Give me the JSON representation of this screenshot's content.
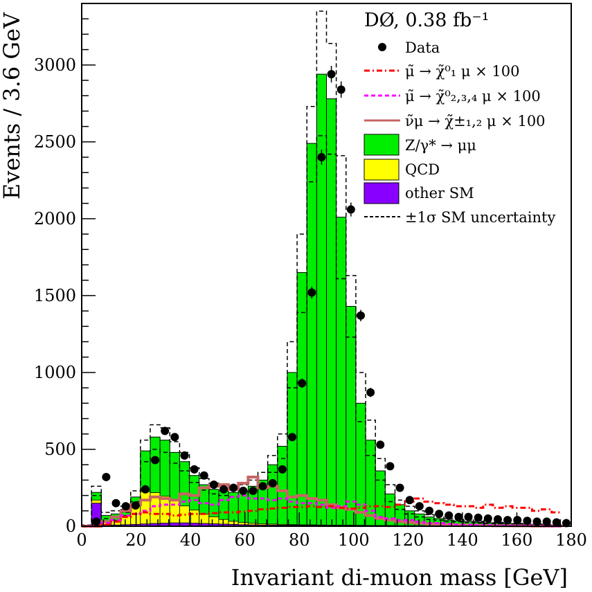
{
  "chart_data": {
    "type": "histogram",
    "title": "DØ, 0.38 fb⁻¹",
    "xlabel": "Invariant di-muon mass [GeV]",
    "ylabel": "Events / 3.6 GeV",
    "xlim": [
      0,
      180
    ],
    "ylim": [
      0,
      3400
    ],
    "bin_width": 3.6,
    "x_ticks": [
      0,
      20,
      40,
      60,
      80,
      100,
      120,
      140,
      160,
      180
    ],
    "x_tick_labels": [
      "0",
      "20",
      "40",
      "60",
      "80",
      "100",
      "120",
      "140",
      "160",
      "180"
    ],
    "y_ticks": [
      0,
      500,
      1000,
      1500,
      2000,
      2500,
      3000
    ],
    "y_tick_labels": [
      "0",
      "500",
      "1000",
      "1500",
      "2000",
      "2500",
      "3000"
    ],
    "legend_position": "top-right",
    "legend": [
      {
        "label": "Data",
        "style": "marker",
        "color": "#000000"
      },
      {
        "label": "μ̃ → χ̃⁰₁ μ × 100",
        "style": "dashdot",
        "color": "#ff0000"
      },
      {
        "label": "μ̃ → χ̃⁰₂,₃,₄ μ × 100",
        "style": "dashed",
        "color": "#ff00ff"
      },
      {
        "label": "ν̃μ → χ̃±₁,₂ μ × 100",
        "style": "solid",
        "color": "#c86464"
      },
      {
        "label": "Z/γ* → μμ",
        "style": "fill",
        "color": "#00ee00"
      },
      {
        "label": "QCD",
        "style": "fill",
        "color": "#ffff00"
      },
      {
        "label": "other SM",
        "style": "fill",
        "color": "#8800ff"
      },
      {
        "label": "±1σ SM uncertainty",
        "style": "dashed",
        "color": "#000000"
      }
    ],
    "series": [
      {
        "name": "Data",
        "color": "#000000",
        "x": [
          5.4,
          9,
          12.6,
          16.2,
          19.8,
          23.4,
          27,
          30.6,
          34.2,
          37.8,
          41.4,
          45,
          48.6,
          52.2,
          55.8,
          59.4,
          63,
          66.6,
          70.2,
          73.8,
          77.4,
          81,
          84.6,
          88.2,
          91.8,
          95.4,
          99,
          102.6,
          106.2,
          109.8,
          113.4,
          117,
          120.6,
          124.2,
          127.8,
          131.4,
          135,
          138.6,
          142.2,
          145.8,
          149.4,
          153,
          156.6,
          160.2,
          163.8,
          167.4,
          171,
          174.6,
          178.2
        ],
        "values": [
          30,
          320,
          150,
          130,
          135,
          240,
          430,
          620,
          580,
          460,
          370,
          330,
          270,
          240,
          250,
          230,
          230,
          260,
          280,
          370,
          580,
          930,
          1520,
          2400,
          2940,
          2840,
          2060,
          1370,
          870,
          530,
          390,
          250,
          170,
          130,
          100,
          80,
          70,
          60,
          60,
          55,
          50,
          45,
          40,
          40,
          35,
          30,
          30,
          25,
          20
        ]
      },
      {
        "name": "Z/γ* → μμ",
        "color": "#00ee00",
        "values": [
          5,
          220,
          70,
          80,
          110,
          190,
          490,
          580,
          560,
          480,
          420,
          330,
          270,
          240,
          230,
          220,
          230,
          260,
          300,
          400,
          520,
          1000,
          1650,
          2490,
          2940,
          2780,
          2010,
          1430,
          800,
          560,
          360,
          210,
          140,
          100,
          80,
          60,
          50,
          40,
          35,
          30,
          25,
          22,
          20,
          18,
          15,
          13,
          12,
          10,
          8
        ]
      },
      {
        "name": "QCD",
        "color": "#ffff00",
        "values": [
          3,
          20,
          15,
          30,
          60,
          120,
          210,
          200,
          175,
          145,
          110,
          85,
          60,
          45,
          30,
          20,
          14,
          10,
          8,
          6,
          5,
          4,
          3,
          3,
          2,
          2,
          2,
          2,
          1,
          1,
          1,
          1,
          1,
          1,
          1,
          0,
          0,
          0,
          0,
          0,
          0,
          0,
          0,
          0,
          0,
          0,
          0,
          0,
          0
        ]
      },
      {
        "name": "other SM",
        "color": "#8800ff",
        "values": [
          3,
          150,
          10,
          8,
          10,
          12,
          15,
          18,
          20,
          22,
          22,
          20,
          18,
          16,
          14,
          12,
          10,
          9,
          8,
          8,
          7,
          7,
          6,
          6,
          6,
          5,
          5,
          5,
          5,
          4,
          4,
          4,
          3,
          3,
          3,
          3,
          3,
          2,
          2,
          2,
          2,
          2,
          2,
          2,
          1,
          1,
          1,
          1,
          1
        ]
      },
      {
        "name": "±1σ SM uncertainty",
        "color": "#000000",
        "upper": [
          8,
          260,
          90,
          100,
          130,
          230,
          560,
          660,
          640,
          550,
          480,
          380,
          310,
          280,
          270,
          260,
          270,
          300,
          350,
          460,
          600,
          1200,
          1900,
          2730,
          3350,
          3140,
          2410,
          1630,
          1000,
          690,
          440,
          270,
          170,
          130,
          100,
          75,
          60,
          50,
          45,
          38,
          32,
          28,
          25,
          22,
          18,
          16,
          14,
          12,
          10
        ],
        "lower": [
          3,
          200,
          50,
          60,
          90,
          160,
          420,
          500,
          480,
          410,
          360,
          285,
          235,
          210,
          200,
          190,
          200,
          225,
          260,
          350,
          440,
          900,
          1390,
          2240,
          2540,
          2420,
          1610,
          1230,
          680,
          460,
          300,
          160,
          110,
          80,
          60,
          45,
          40,
          30,
          28,
          24,
          20,
          18,
          16,
          14,
          12,
          10,
          10,
          8,
          6
        ]
      },
      {
        "name": "μ̃ → χ̃⁰₁ μ × 100",
        "color": "#ff0000",
        "values": [
          0,
          0,
          10,
          30,
          60,
          80,
          90,
          80,
          80,
          70,
          75,
          80,
          80,
          85,
          90,
          90,
          95,
          100,
          110,
          115,
          120,
          125,
          125,
          130,
          125,
          130,
          120,
          115,
          120,
          130,
          130,
          125,
          140,
          160,
          180,
          160,
          150,
          140,
          130,
          130,
          120,
          140,
          120,
          130,
          120,
          120,
          100,
          110,
          90
        ]
      },
      {
        "name": "μ̃ → χ̃⁰₂,₃,₄ μ × 100",
        "color": "#ff00ff",
        "values": [
          0,
          0,
          20,
          40,
          70,
          80,
          100,
          130,
          140,
          140,
          160,
          170,
          150,
          140,
          170,
          190,
          200,
          180,
          180,
          170,
          180,
          160,
          150,
          150,
          140,
          120,
          130,
          160,
          140,
          100,
          60,
          50,
          40,
          40,
          30,
          20,
          20,
          15,
          10,
          10,
          8,
          6,
          5,
          4,
          3,
          2,
          2,
          1,
          0
        ]
      },
      {
        "name": "ν̃μ → χ̃±₁,₂ μ × 100",
        "color": "#c86464",
        "values": [
          0,
          0,
          30,
          60,
          100,
          140,
          170,
          190,
          180,
          170,
          210,
          200,
          250,
          260,
          270,
          240,
          280,
          320,
          250,
          260,
          230,
          190,
          200,
          180,
          170,
          140,
          120,
          110,
          90,
          70,
          50,
          40,
          30,
          25,
          20,
          15,
          12,
          10,
          8,
          6,
          5,
          4,
          3,
          3,
          2,
          2,
          1,
          1,
          1
        ]
      }
    ]
  }
}
